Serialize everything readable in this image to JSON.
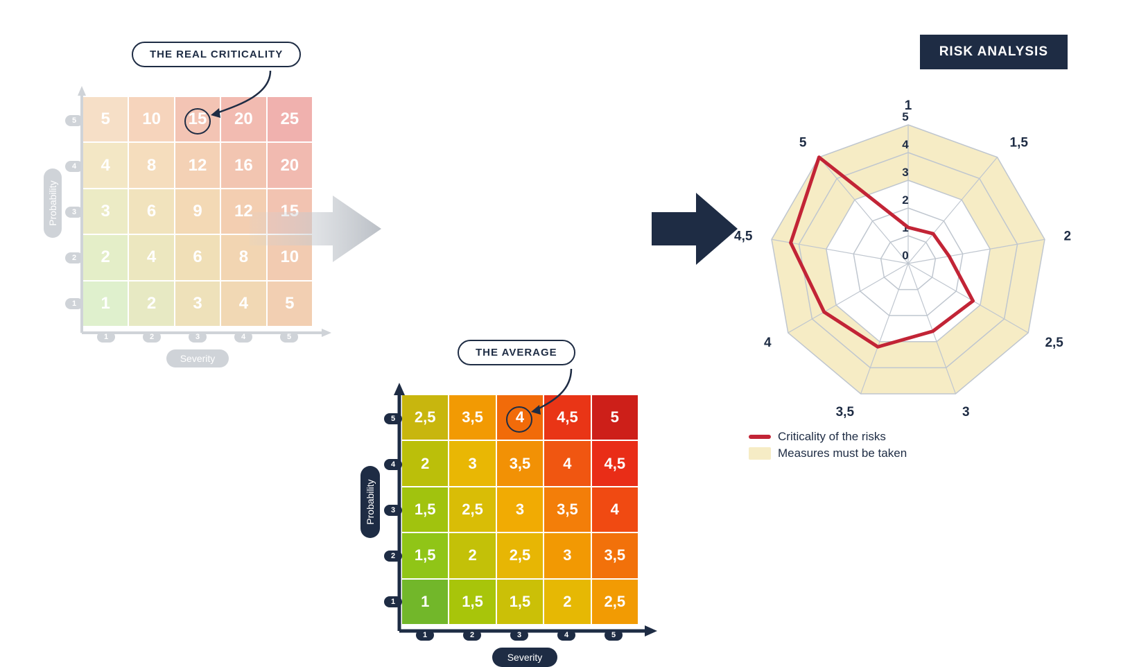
{
  "colors": {
    "navy": "#1e2c44",
    "gray_faded": "#cfd3d8",
    "radar_band": "#f6ecc5",
    "radar_line": "#c22436",
    "radar_grid": "#bfc6cf"
  },
  "matrix_left": {
    "callout_text": "THE REAL CRITICALITY",
    "x_label": "Severity",
    "y_label": "Probability",
    "axis_ticks": [
      "1",
      "2",
      "3",
      "4",
      "5"
    ],
    "cells": [
      [
        "5",
        "10",
        "15",
        "20",
        "25"
      ],
      [
        "4",
        "8",
        "12",
        "16",
        "20"
      ],
      [
        "3",
        "6",
        "9",
        "12",
        "15"
      ],
      [
        "2",
        "4",
        "6",
        "8",
        "10"
      ],
      [
        "1",
        "2",
        "3",
        "4",
        "5"
      ]
    ],
    "cell_colors": [
      [
        "#f6dfc7",
        "#f6d4bc",
        "#f3c4b4",
        "#f2bbb1",
        "#f0b1ae"
      ],
      [
        "#f3e7c5",
        "#f5ddbd",
        "#f4d1b5",
        "#f2c5b1",
        "#f1bab0"
      ],
      [
        "#ecebc5",
        "#f1e3bd",
        "#f3d9b5",
        "#f3ceb1",
        "#f2c3b1"
      ],
      [
        "#e4eec8",
        "#ece7bf",
        "#f0dfb7",
        "#f2d5b2",
        "#f2cbb1"
      ],
      [
        "#dff0cd",
        "#e7e9c3",
        "#eee1ba",
        "#f1d8b4",
        "#f2cfb2"
      ]
    ],
    "highlight_cell": {
      "row": 0,
      "col": 2
    }
  },
  "matrix_right": {
    "callout_text": "THE AVERAGE",
    "x_label": "Severity",
    "y_label": "Probability",
    "axis_ticks": [
      "1",
      "2",
      "3",
      "4",
      "5"
    ],
    "cells": [
      [
        "2,5",
        "3,5",
        "4",
        "4,5",
        "5"
      ],
      [
        "2",
        "3",
        "3,5",
        "4",
        "4,5"
      ],
      [
        "1,5",
        "2,5",
        "3",
        "3,5",
        "4"
      ],
      [
        "1,5",
        "2",
        "2,5",
        "3",
        "3,5"
      ],
      [
        "1",
        "1,5",
        "1,5",
        "2",
        "2,5"
      ]
    ],
    "cell_colors": [
      [
        "#c8b60e",
        "#f29a03",
        "#f16b0a",
        "#e93516",
        "#cd1f19"
      ],
      [
        "#bbbf0a",
        "#e9b704",
        "#f29105",
        "#f05611",
        "#e92d17"
      ],
      [
        "#a1c30e",
        "#d9bd06",
        "#f1ab03",
        "#f37e09",
        "#f04a12"
      ],
      [
        "#90c517",
        "#c3c108",
        "#e7b604",
        "#f29903",
        "#f2710a"
      ],
      [
        "#72b72a",
        "#a8c50a",
        "#cbc007",
        "#e6b804",
        "#f29b03"
      ]
    ],
    "highlight_cell": {
      "row": 0,
      "col": 2
    }
  },
  "radar": {
    "title": "RISK ANALYSIS",
    "axes": [
      "1",
      "1,5",
      "2",
      "2,5",
      "3",
      "3,5",
      "4",
      "4,5",
      "5"
    ],
    "ring_labels": [
      "0",
      "1",
      "2",
      "3",
      "4",
      "5"
    ],
    "max": 5,
    "band_inner": 3,
    "band_outer": 5,
    "values": [
      1.3,
      1.4,
      1.5,
      2.7,
      2.6,
      3.2,
      3.5,
      4.3,
      5.0
    ],
    "legend": [
      {
        "label": "Criticality of the risks",
        "type": "line",
        "color": "#c22436"
      },
      {
        "label": "Measures must be taken",
        "type": "box",
        "color": "#f6ecc5"
      }
    ]
  }
}
